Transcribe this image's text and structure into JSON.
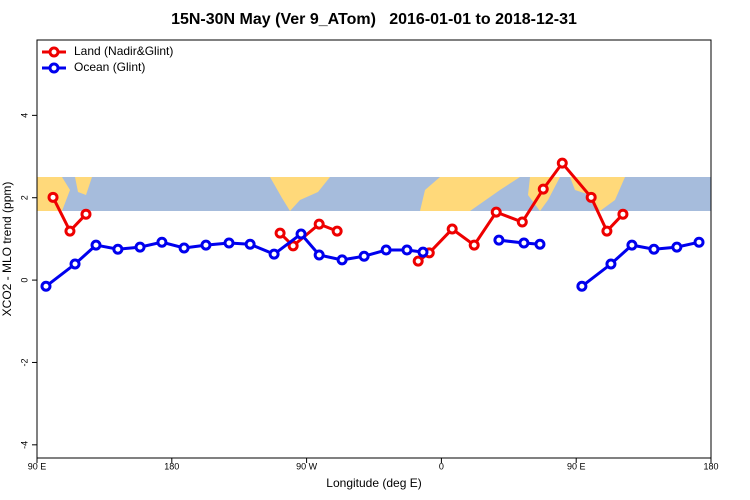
{
  "chart_data": {
    "type": "line",
    "title": "15N-30N May (Ver 9_ATom)   2016-01-01 to 2018-12-31",
    "xlabel": "Longitude (deg E)",
    "ylabel": "XCO2 - MLO trend (ppm)",
    "xlim": [
      90,
      540
    ],
    "ylim": [
      -4.32,
      5.83
    ],
    "xticks": [
      {
        "value": 90,
        "label": "90 E"
      },
      180,
      {
        "value": 270,
        "label": "90 W"
      },
      {
        "value": 360,
        "label": "0"
      },
      {
        "value": 450,
        "label": "90 E"
      },
      {
        "value": 540,
        "label": "180"
      }
    ],
    "yticks": [
      -4,
      -2,
      0,
      2,
      4
    ],
    "legend": "top-left",
    "series": [
      {
        "name": "Land (Nadir&Glint)",
        "color": "#ee0000",
        "x": [
          100.7,
          112,
          122.7,
          null,
          252.3,
          261,
          278.4,
          290.4,
          null,
          344.5,
          351.9,
          367.2,
          381.9,
          396.6,
          414,
          428,
          440.7,
          460,
          470.5,
          481.2
        ],
        "values": [
          2.01,
          1.19,
          1.6,
          null,
          1.14,
          0.83,
          1.36,
          1.19,
          null,
          0.46,
          0.66,
          1.24,
          0.85,
          1.65,
          1.41,
          2.21,
          2.84,
          2.01,
          1.19,
          1.6
        ]
      },
      {
        "name": "Ocean (Glint)",
        "color": "#0000ee",
        "x": [
          96,
          115.4,
          129.4,
          144,
          158.8,
          173.4,
          188.2,
          202.8,
          218.2,
          232.3,
          248.3,
          266.3,
          278.4,
          293.7,
          308.4,
          323.1,
          337,
          347.7,
          null,
          398.4,
          415.1,
          425.8,
          null,
          453.8,
          473.2,
          487.2,
          501.9,
          517.2,
          532
        ],
        "values": [
          -0.15,
          0.39,
          0.85,
          0.75,
          0.8,
          0.92,
          0.78,
          0.85,
          0.9,
          0.87,
          0.63,
          1.12,
          0.61,
          0.49,
          0.58,
          0.73,
          0.73,
          0.68,
          null,
          0.97,
          0.9,
          0.87,
          null,
          -0.15,
          0.39,
          0.85,
          0.75,
          0.8,
          0.92
        ]
      }
    ]
  }
}
